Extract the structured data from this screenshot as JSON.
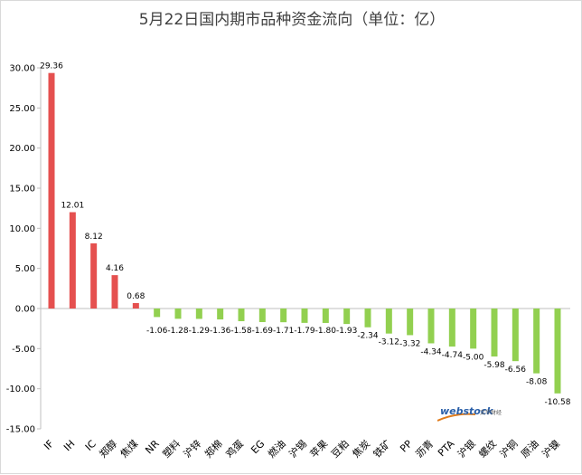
{
  "chart_data": {
    "type": "bar",
    "title": "5月22日国内期市品种资金流向（单位：亿）",
    "xlabel": "",
    "ylabel": "",
    "ylim": [
      -15,
      30
    ],
    "yticks": [
      30,
      25,
      20,
      15,
      10,
      5,
      0,
      -5,
      -10,
      -15
    ],
    "ytick_labels": [
      "30.00",
      "25.00",
      "20.00",
      "15.00",
      "10.00",
      "5.00",
      "0.00",
      "-5.00",
      "-10.00",
      "-15.00"
    ],
    "grid": false,
    "legend": "none",
    "categories": [
      "IF",
      "IH",
      "IC",
      "郑醇",
      "焦煤",
      "NR",
      "塑料",
      "沪锌",
      "郑棉",
      "鸡蛋",
      "EG",
      "燃油",
      "沪锡",
      "苹果",
      "豆粕",
      "焦炭",
      "铁矿",
      "PP",
      "沥青",
      "PTA",
      "沪银",
      "螺纹",
      "沪铜",
      "原油",
      "沪镍"
    ],
    "values": [
      29.36,
      12.01,
      8.12,
      4.16,
      0.68,
      -1.06,
      -1.28,
      -1.29,
      -1.36,
      -1.58,
      -1.69,
      -1.71,
      -1.79,
      -1.8,
      -1.93,
      -2.34,
      -3.12,
      -3.32,
      -4.34,
      -4.74,
      -5.0,
      -5.98,
      -6.56,
      -8.08,
      -10.58
    ],
    "value_labels": [
      "29.36",
      "12.01",
      "8.12",
      "4.16",
      "0.68",
      "-1.06",
      "-1.28",
      "-1.29",
      "-1.36",
      "-1.58",
      "-1.69",
      "-1.71",
      "-1.79",
      "-1.80",
      "-1.93",
      "-2.34",
      "-3.12",
      "-3.32",
      "-4.34",
      "-4.74",
      "-5.00",
      "-5.98",
      "-6.56",
      "-8.08",
      "-10.58"
    ],
    "colors": {
      "positive": "#e5504f",
      "negative": "#92d050",
      "axis": "#bfbfbf",
      "text": "#000000"
    }
  },
  "watermark": {
    "brand": "webstock",
    "sub": "文华财经"
  }
}
